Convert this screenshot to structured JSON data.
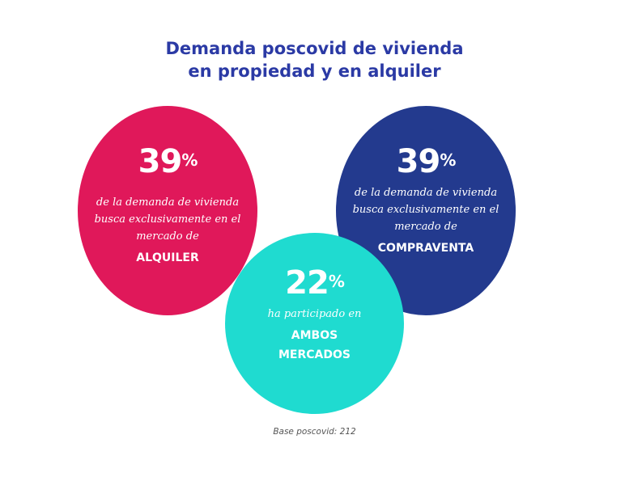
{
  "title": {
    "line1": "Demanda poscovid de vivienda",
    "line2": "en propiedad y en alquiler"
  },
  "colors": {
    "title": "#2b3aa5",
    "alquiler": "#e0185a",
    "compraventa": "#233a8e",
    "ambos": "#1fdbd0"
  },
  "alquiler": {
    "value": "39",
    "unit": "%",
    "desc1": "de la demanda de vivienda",
    "desc2": "busca exclusivamente en el",
    "desc3": "mercado de",
    "market": "ALQUILER"
  },
  "compraventa": {
    "value": "39",
    "unit": "%",
    "desc1": "de la demanda de vivienda",
    "desc2": "busca exclusivamente en el",
    "desc3": "mercado de",
    "market": "COMPRAVENTA"
  },
  "ambos": {
    "value": "22",
    "unit": "%",
    "desc1": "ha participado en",
    "market1": "AMBOS",
    "market2": "MERCADOS"
  },
  "note": "Base poscovid: 212"
}
